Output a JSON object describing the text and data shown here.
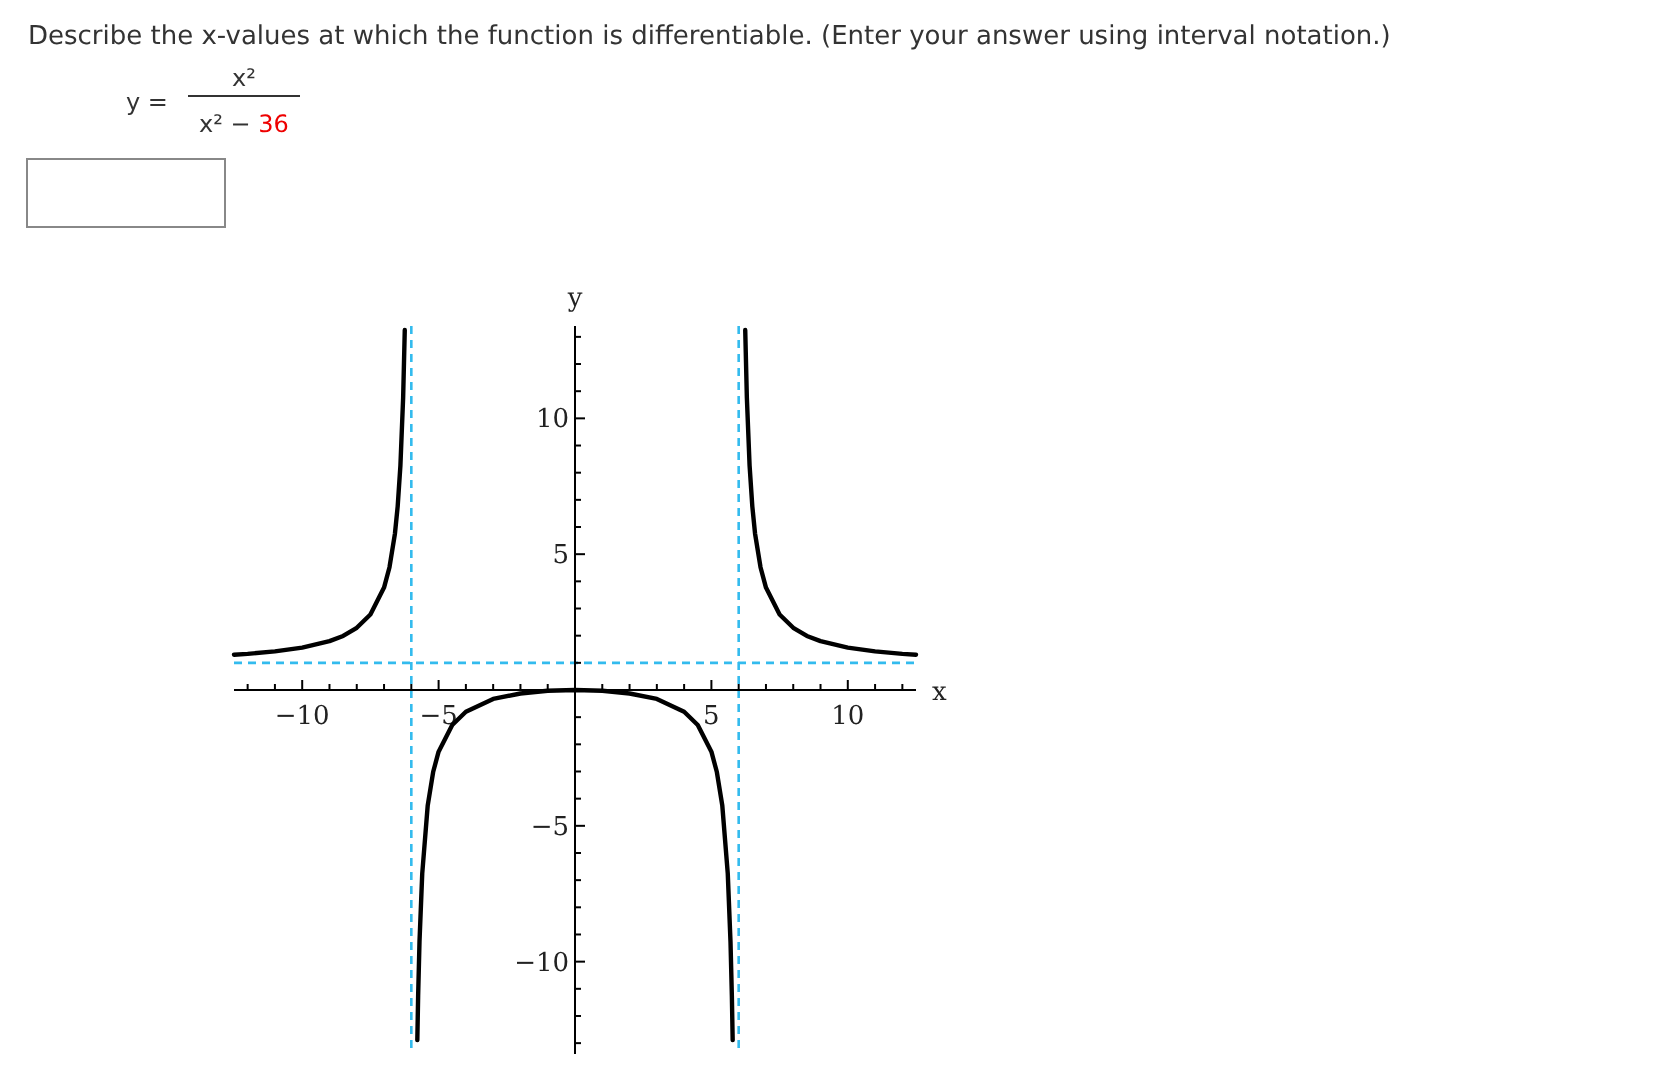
{
  "chart_data": {
    "type": "line",
    "title": "Describe the x-values at which the function is differentiable. (Enter your answer using interval notation.)",
    "annotations": [
      "y =",
      "x²",
      "x² − 36"
    ],
    "xlabel": "x",
    "ylabel": "y",
    "xlim": [
      -12.5,
      12.5
    ],
    "ylim": [
      -13.4,
      13.4
    ],
    "xticks": [
      {
        "value": -12,
        "label": null
      },
      {
        "value": -11,
        "label": null
      },
      {
        "value": -10,
        "label": "−10"
      },
      {
        "value": -9,
        "label": null
      },
      {
        "value": -8,
        "label": null
      },
      {
        "value": -7,
        "label": null
      },
      {
        "value": -6,
        "label": null
      },
      {
        "value": -5,
        "label": "−5"
      },
      {
        "value": -4,
        "label": null
      },
      {
        "value": -3,
        "label": null
      },
      {
        "value": -2,
        "label": null
      },
      {
        "value": -1,
        "label": null
      },
      {
        "value": 1,
        "label": null
      },
      {
        "value": 2,
        "label": null
      },
      {
        "value": 3,
        "label": null
      },
      {
        "value": 4,
        "label": null
      },
      {
        "value": 5,
        "label": "5"
      },
      {
        "value": 6,
        "label": null
      },
      {
        "value": 7,
        "label": null
      },
      {
        "value": 8,
        "label": null
      },
      {
        "value": 9,
        "label": null
      },
      {
        "value": 10,
        "label": "10"
      },
      {
        "value": 11,
        "label": null
      },
      {
        "value": 12,
        "label": null
      }
    ],
    "yticks": [
      {
        "value": -13,
        "label": null
      },
      {
        "value": -12,
        "label": null
      },
      {
        "value": -11,
        "label": null
      },
      {
        "value": -10,
        "label": "−10"
      },
      {
        "value": -9,
        "label": null
      },
      {
        "value": -8,
        "label": null
      },
      {
        "value": -7,
        "label": null
      },
      {
        "value": -6,
        "label": null
      },
      {
        "value": -5,
        "label": "−5"
      },
      {
        "value": -4,
        "label": null
      },
      {
        "value": -3,
        "label": null
      },
      {
        "value": -2,
        "label": null
      },
      {
        "value": -1,
        "label": null
      },
      {
        "value": 1,
        "label": null
      },
      {
        "value": 2,
        "label": null
      },
      {
        "value": 3,
        "label": null
      },
      {
        "value": 4,
        "label": null
      },
      {
        "value": 5,
        "label": "5"
      },
      {
        "value": 6,
        "label": null
      },
      {
        "value": 7,
        "label": null
      },
      {
        "value": 8,
        "label": null
      },
      {
        "value": 9,
        "label": null
      },
      {
        "value": 10,
        "label": "10"
      },
      {
        "value": 11,
        "label": null
      },
      {
        "value": 12,
        "label": null
      },
      {
        "value": 13,
        "label": null
      }
    ],
    "grid": false,
    "marker": "none",
    "line_style": "solid",
    "ref_lines": [
      {
        "axis": "x",
        "value": -6,
        "color": "#33bbee",
        "line_style": "dashed"
      },
      {
        "axis": "x",
        "value": 6,
        "color": "#33bbee",
        "line_style": "dashed"
      },
      {
        "axis": "y",
        "value": 1,
        "color": "#33bbee",
        "line_style": "dashed"
      }
    ],
    "series": [
      {
        "color": "#000000",
        "x": [
          -12.5,
          -12,
          -11,
          -10,
          -9,
          -8.5,
          -8,
          -7.5,
          -7,
          -6.8,
          -6.6,
          -6.5,
          -6.4,
          -6.3,
          -6.24,
          -6,
          -5.78,
          -5.75,
          -5.7,
          -5.6,
          -5.4,
          -5.2,
          -5,
          -4.5,
          -4,
          -3,
          -2,
          -1,
          0,
          1,
          2,
          3,
          4,
          4.5,
          5,
          5.2,
          5.4,
          5.6,
          5.7,
          5.75,
          5.78,
          6,
          6.24,
          6.3,
          6.4,
          6.5,
          6.6,
          6.8,
          7,
          7.5,
          8,
          8.5,
          9,
          10,
          11,
          12,
          12.5
        ],
        "values": [
          1.3,
          1.33,
          1.42,
          1.56,
          1.8,
          1.99,
          2.29,
          2.78,
          3.77,
          4.52,
          5.76,
          6.76,
          8.26,
          10.76,
          13.25,
          null,
          -12.89,
          -11.26,
          -9.26,
          -6.76,
          -4.26,
          -3.02,
          -2.27,
          -1.29,
          -0.8,
          -0.33,
          -0.13,
          -0.03,
          0,
          -0.03,
          -0.13,
          -0.33,
          -0.8,
          -1.29,
          -2.27,
          -3.02,
          -4.26,
          -6.76,
          -9.26,
          -11.26,
          -12.89,
          null,
          13.25,
          10.76,
          8.26,
          6.76,
          5.76,
          4.52,
          3.77,
          2.78,
          2.29,
          1.99,
          1.8,
          1.56,
          1.42,
          1.33,
          1.3
        ]
      }
    ]
  }
}
